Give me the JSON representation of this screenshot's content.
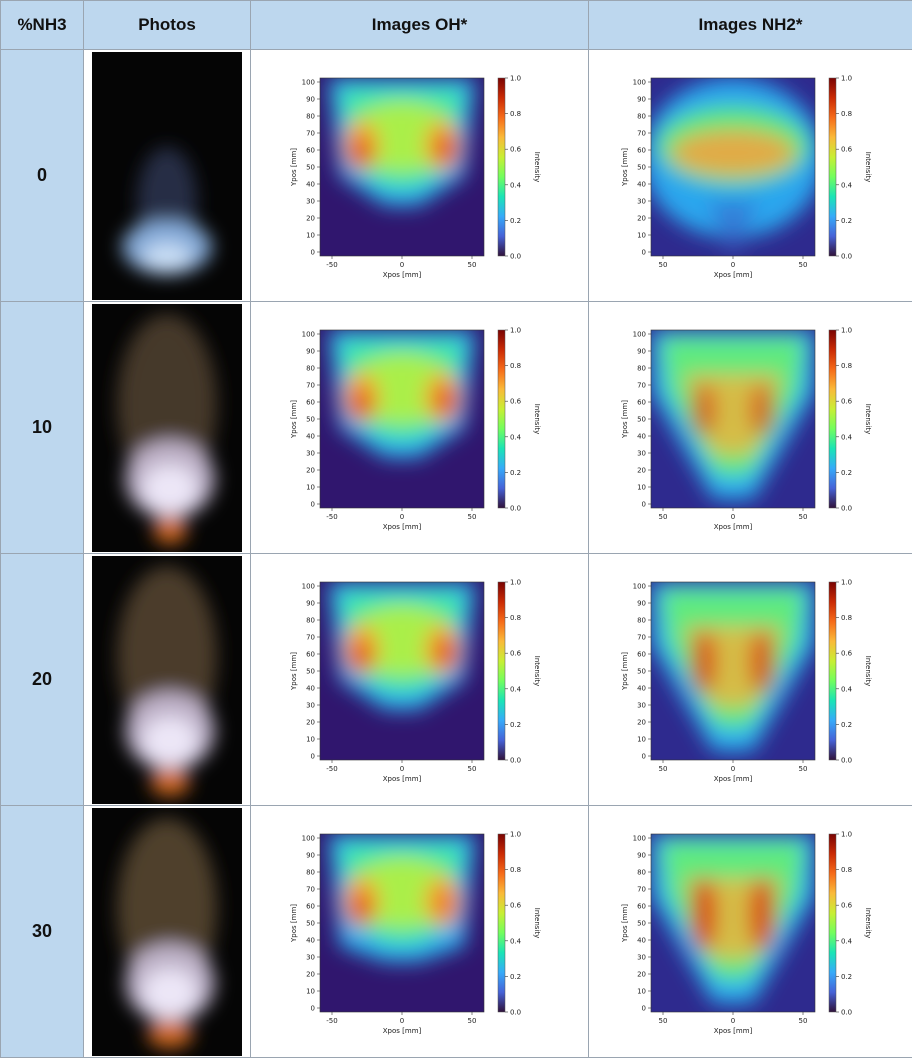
{
  "table": {
    "header": [
      "%NH3",
      "Photos",
      "Images OH*",
      "Images NH2*"
    ],
    "rows": [
      "0",
      "10",
      "20",
      "30"
    ]
  },
  "plots": {
    "oh": {
      "y_label": "Ypos [mm]",
      "x_label": "Xpos [mm]",
      "yticks": [
        "0",
        "10",
        "20",
        "30",
        "40",
        "50",
        "60",
        "70",
        "80",
        "90",
        "100"
      ],
      "xticks": [
        "-50",
        "0",
        "50"
      ],
      "colorbar_label": "Intensity",
      "colorbar_ticks": [
        "0.0",
        "0.2",
        "0.4",
        "0.6",
        "0.8",
        "1.0"
      ]
    },
    "nh2": {
      "y_label": "Ypos [mm]",
      "x_label": "Xpos [mm]",
      "yticks": [
        "0",
        "10",
        "20",
        "30",
        "40",
        "50",
        "60",
        "70",
        "80",
        "90",
        "100"
      ],
      "xticks": [
        "50",
        "0",
        "50"
      ],
      "colorbar_label": "Intensity",
      "colorbar_ticks": [
        "0.0",
        "0.2",
        "0.4",
        "0.6",
        "0.8",
        "1.0"
      ]
    }
  }
}
